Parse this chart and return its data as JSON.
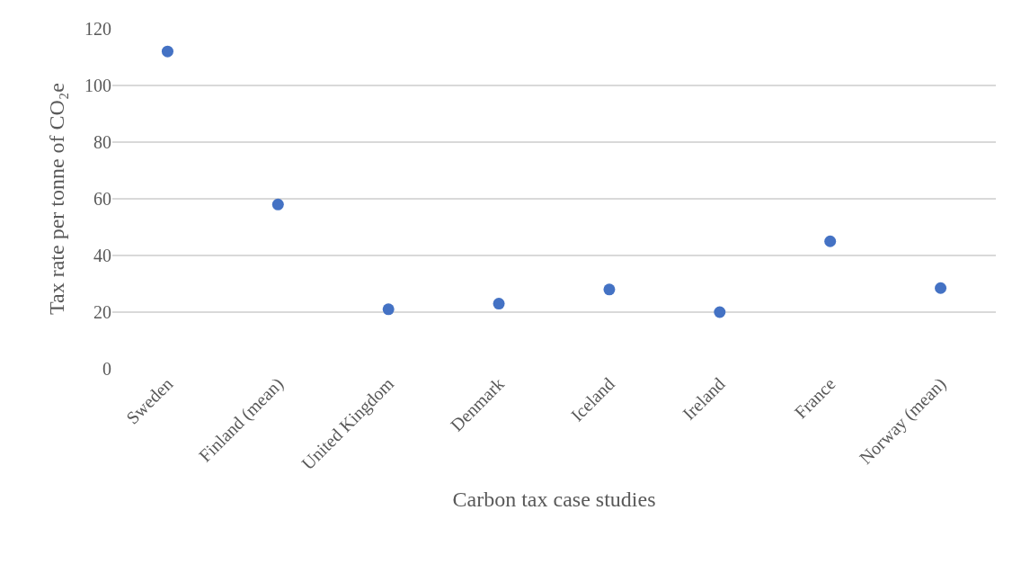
{
  "chart_data": {
    "type": "scatter",
    "xlabel": "Carbon tax case studies",
    "ylabel": "Tax rate per tonne of CO₂e",
    "categories": [
      "Sweden",
      "Finland (mean)",
      "United Kingdom",
      "Denmark",
      "Iceland",
      "Ireland",
      "France",
      "Norway (mean)"
    ],
    "values": [
      112,
      58,
      21,
      23,
      28,
      20,
      45,
      28.5
    ],
    "color": "#4472c4",
    "ylim": [
      0,
      120
    ],
    "yticks": [
      0,
      20,
      40,
      60,
      80,
      100,
      120
    ],
    "grid": "y",
    "marker": "circle",
    "legend": false
  }
}
